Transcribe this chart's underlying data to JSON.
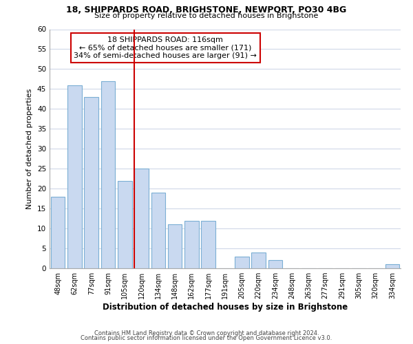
{
  "title1": "18, SHIPPARDS ROAD, BRIGHSTONE, NEWPORT, PO30 4BG",
  "title2": "Size of property relative to detached houses in Brighstone",
  "xlabel": "Distribution of detached houses by size in Brighstone",
  "ylabel": "Number of detached properties",
  "bar_labels": [
    "48sqm",
    "62sqm",
    "77sqm",
    "91sqm",
    "105sqm",
    "120sqm",
    "134sqm",
    "148sqm",
    "162sqm",
    "177sqm",
    "191sqm",
    "205sqm",
    "220sqm",
    "234sqm",
    "248sqm",
    "263sqm",
    "277sqm",
    "291sqm",
    "305sqm",
    "320sqm",
    "334sqm"
  ],
  "bar_values": [
    18,
    46,
    43,
    47,
    22,
    25,
    19,
    11,
    12,
    12,
    0,
    3,
    4,
    2,
    0,
    0,
    0,
    0,
    0,
    0,
    1
  ],
  "bar_color": "#c9d9f0",
  "bar_edge_color": "#7bafd4",
  "vline_color": "#cc0000",
  "annotation_title": "18 SHIPPARDS ROAD: 116sqm",
  "annotation_line1": "← 65% of detached houses are smaller (171)",
  "annotation_line2": "34% of semi-detached houses are larger (91) →",
  "annotation_box_color": "#ffffff",
  "annotation_box_edge": "#cc0000",
  "ylim": [
    0,
    60
  ],
  "yticks": [
    0,
    5,
    10,
    15,
    20,
    25,
    30,
    35,
    40,
    45,
    50,
    55,
    60
  ],
  "grid_color": "#d0d8e8",
  "footer1": "Contains HM Land Registry data © Crown copyright and database right 2024.",
  "footer2": "Contains public sector information licensed under the Open Government Licence v3.0."
}
